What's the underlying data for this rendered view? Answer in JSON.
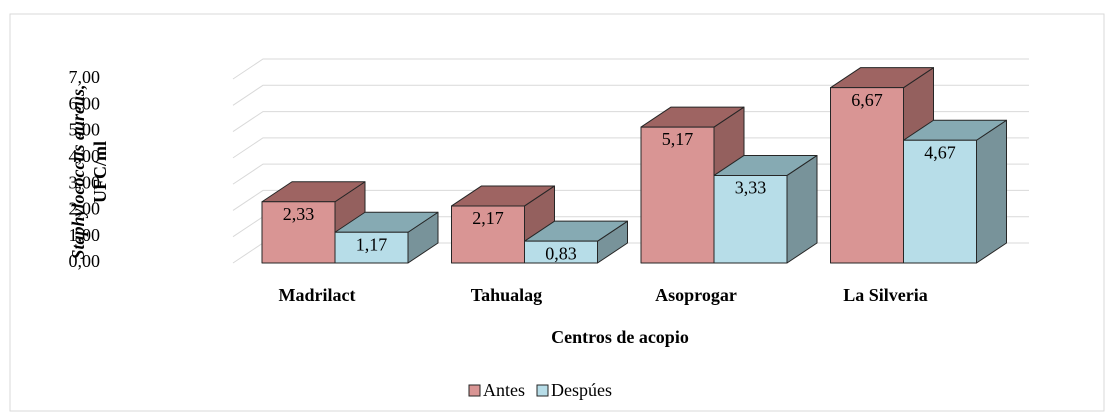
{
  "chart_data": {
    "type": "bar3d",
    "ylabel": [
      "Staphylococcus aureus,",
      "UFC/ml"
    ],
    "xlabel": "Centros de acopio",
    "categories": [
      "Madrilact",
      "Tahualag",
      "Asoprogar",
      "La Silveria"
    ],
    "series": [
      {
        "name": "Antes",
        "color": "#d99594",
        "top_color": "#9e6462",
        "side_color": "#94605e",
        "values": [
          2.33,
          2.17,
          5.17,
          6.67
        ],
        "value_labels": [
          "2,33",
          "2,17",
          "5,17",
          "6,67"
        ]
      },
      {
        "name": "Despúes",
        "color": "#b7dde8",
        "top_color": "#86aab3",
        "side_color": "#78939a",
        "values": [
          1.17,
          0.83,
          3.33,
          4.67
        ],
        "value_labels": [
          "1,17",
          "0,83",
          "3,33",
          "4,67"
        ]
      }
    ],
    "ylim": [
      0,
      7
    ],
    "yticks": [
      {
        "value": 0,
        "label": "0,00"
      },
      {
        "value": 1,
        "label": "1,00"
      },
      {
        "value": 2,
        "label": "2,00"
      },
      {
        "value": 3,
        "label": "3,00"
      },
      {
        "value": 4,
        "label": "4,00"
      },
      {
        "value": 5,
        "label": "5,00"
      },
      {
        "value": 6,
        "label": "6,00"
      },
      {
        "value": 7,
        "label": "7,00"
      }
    ],
    "grid": true,
    "legend": "bottom"
  }
}
